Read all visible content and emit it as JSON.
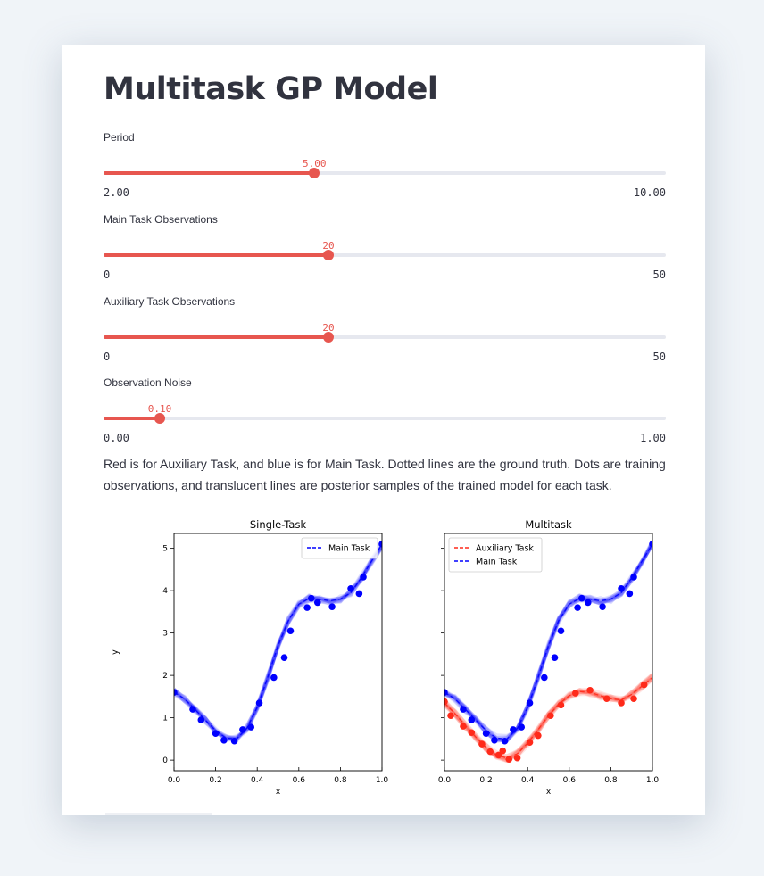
{
  "page": {
    "title": "Multitask GP Model"
  },
  "sliders": [
    {
      "label": "Period",
      "value": "5.00",
      "min": "2.00",
      "max": "10.00",
      "fraction": 0.375
    },
    {
      "label": "Main Task Observations",
      "value": "20",
      "min": "0",
      "max": "50",
      "fraction": 0.4
    },
    {
      "label": "Auxiliary Task Observations",
      "value": "20",
      "min": "0",
      "max": "50",
      "fraction": 0.4
    },
    {
      "label": "Observation Noise",
      "value": "0.10",
      "min": "0.00",
      "max": "1.00",
      "fraction": 0.1
    }
  ],
  "description": "Red is for Auxiliary Task, and blue is for Main Task. Dotted lines are the ground truth. Dots are training observations, and translucent lines are posterior samples of the trained model for each task.",
  "colors": {
    "accent": "#e7564f",
    "main_task": "#0000ff",
    "aux_task": "#ff2a1a"
  },
  "chart_data": [
    {
      "type": "line",
      "title": "Single-Task",
      "xlabel": "x",
      "ylabel": "y",
      "xlim": [
        0,
        1
      ],
      "ylim": [
        -0.25,
        5.35
      ],
      "xticks": [
        "0.0",
        "0.2",
        "0.4",
        "0.6",
        "0.8",
        "1.0"
      ],
      "yticks": [
        "0",
        "1",
        "2",
        "3",
        "4",
        "5"
      ],
      "legend": [
        "Main Task"
      ],
      "series": [
        {
          "name": "Main Task",
          "color": "#0000ff",
          "truth_x": [
            0,
            0.05,
            0.1,
            0.15,
            0.2,
            0.25,
            0.3,
            0.35,
            0.4,
            0.45,
            0.5,
            0.55,
            0.6,
            0.65,
            0.7,
            0.75,
            0.8,
            0.85,
            0.9,
            0.95,
            1.0
          ],
          "truth_y": [
            1.6,
            1.45,
            1.2,
            0.95,
            0.7,
            0.52,
            0.5,
            0.75,
            1.25,
            1.95,
            2.7,
            3.3,
            3.68,
            3.82,
            3.8,
            3.76,
            3.8,
            3.95,
            4.3,
            4.7,
            5.1
          ],
          "points_x": [
            0.0,
            0.09,
            0.13,
            0.2,
            0.24,
            0.29,
            0.33,
            0.37,
            0.41,
            0.48,
            0.53,
            0.56,
            0.64,
            0.66,
            0.69,
            0.76,
            0.85,
            0.89,
            0.91,
            1.0
          ],
          "points_y": [
            1.6,
            1.2,
            0.95,
            0.63,
            0.47,
            0.45,
            0.72,
            0.78,
            1.35,
            1.95,
            2.42,
            3.05,
            3.6,
            3.82,
            3.72,
            3.62,
            4.05,
            3.93,
            4.32,
            5.1
          ]
        }
      ]
    },
    {
      "type": "line",
      "title": "Multitask",
      "xlabel": "x",
      "ylabel": "",
      "xlim": [
        0,
        1
      ],
      "ylim": [
        -0.25,
        5.35
      ],
      "xticks": [
        "0.0",
        "0.2",
        "0.4",
        "0.6",
        "0.8",
        "1.0"
      ],
      "yticks": [],
      "legend": [
        "Auxiliary Task",
        "Main Task"
      ],
      "series": [
        {
          "name": "Auxiliary Task",
          "color": "#ff2a1a",
          "truth_x": [
            0,
            0.05,
            0.1,
            0.15,
            0.2,
            0.25,
            0.3,
            0.35,
            0.4,
            0.45,
            0.5,
            0.55,
            0.6,
            0.65,
            0.7,
            0.75,
            0.8,
            0.85,
            0.9,
            0.95,
            1.0
          ],
          "truth_y": [
            1.35,
            1.1,
            0.82,
            0.55,
            0.3,
            0.12,
            0.05,
            0.15,
            0.4,
            0.72,
            1.05,
            1.32,
            1.52,
            1.62,
            1.6,
            1.52,
            1.45,
            1.42,
            1.55,
            1.75,
            1.95
          ],
          "points_x": [
            0.0,
            0.03,
            0.09,
            0.13,
            0.18,
            0.22,
            0.26,
            0.28,
            0.31,
            0.35,
            0.41,
            0.45,
            0.51,
            0.56,
            0.63,
            0.7,
            0.78,
            0.85,
            0.91,
            0.96
          ],
          "points_y": [
            1.38,
            1.05,
            0.8,
            0.65,
            0.38,
            0.2,
            0.12,
            0.22,
            0.02,
            0.05,
            0.42,
            0.58,
            1.05,
            1.3,
            1.58,
            1.65,
            1.45,
            1.35,
            1.45,
            1.78
          ]
        },
        {
          "name": "Main Task",
          "color": "#0000ff",
          "truth_x": [
            0,
            0.05,
            0.1,
            0.15,
            0.2,
            0.25,
            0.3,
            0.35,
            0.4,
            0.45,
            0.5,
            0.55,
            0.6,
            0.65,
            0.7,
            0.75,
            0.8,
            0.85,
            0.9,
            0.95,
            1.0
          ],
          "truth_y": [
            1.6,
            1.45,
            1.2,
            0.95,
            0.7,
            0.52,
            0.5,
            0.75,
            1.25,
            1.95,
            2.7,
            3.3,
            3.68,
            3.82,
            3.8,
            3.76,
            3.8,
            3.95,
            4.3,
            4.7,
            5.1
          ],
          "points_x": [
            0.0,
            0.09,
            0.13,
            0.2,
            0.24,
            0.29,
            0.33,
            0.37,
            0.41,
            0.48,
            0.53,
            0.56,
            0.64,
            0.66,
            0.69,
            0.76,
            0.85,
            0.89,
            0.91,
            1.0
          ],
          "points_y": [
            1.6,
            1.2,
            0.95,
            0.63,
            0.47,
            0.45,
            0.72,
            0.78,
            1.35,
            1.95,
            2.42,
            3.05,
            3.6,
            3.82,
            3.72,
            3.62,
            4.05,
            3.93,
            4.32,
            5.1
          ]
        }
      ]
    }
  ]
}
